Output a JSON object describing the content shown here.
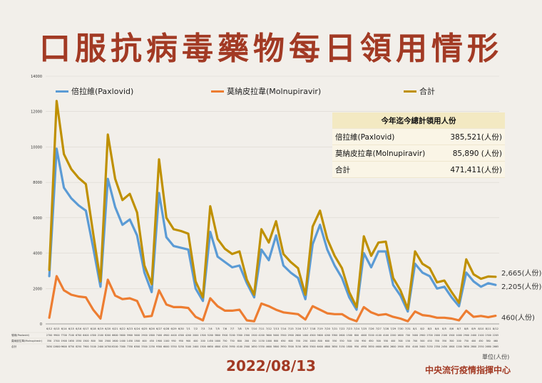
{
  "page": {
    "title": "口服抗病毒藥物每日領用情形",
    "date": "2022/08/13",
    "unit_note": "單位(人份)",
    "source": "中央流行疫情指揮中心"
  },
  "summary_table": {
    "header": "今年迄今總計領用人份",
    "rows": [
      {
        "label": "倍拉維(Paxlovid)",
        "value": "385,521(人份)"
      },
      {
        "label": "莫納皮拉韋(Molnupiravir)",
        "value": "85,890 (人份)"
      },
      {
        "label": "合計",
        "value": "471,411(人份)"
      }
    ]
  },
  "colors": {
    "paxlovid": "#5b9bd5",
    "molnupiravir": "#ed7d31",
    "total": "#bf9000",
    "title": "#a23a24"
  },
  "chart_data": {
    "type": "line",
    "ylim": [
      0,
      14000
    ],
    "yticks": [
      0,
      2000,
      4000,
      6000,
      8000,
      10000,
      12000,
      14000
    ],
    "x": [
      "6/12",
      "6/13",
      "6/14",
      "6/15",
      "6/16",
      "6/17",
      "6/18",
      "6/19",
      "6/20",
      "6/21",
      "6/22",
      "6/23",
      "6/24",
      "6/25",
      "6/26",
      "6/27",
      "6/28",
      "6/29",
      "6/30",
      "7/1",
      "7/2",
      "7/3",
      "7/4",
      "7/5",
      "7/6",
      "7/7",
      "7/8",
      "7/9",
      "7/10",
      "7/11",
      "7/12",
      "7/13",
      "7/14",
      "7/15",
      "7/16",
      "7/17",
      "7/18",
      "7/19",
      "7/20",
      "7/21",
      "7/22",
      "7/23",
      "7/24",
      "7/25",
      "7/26",
      "7/27",
      "7/28",
      "7/29",
      "7/30",
      "7/31",
      "8/1",
      "8/2",
      "8/3",
      "8/4",
      "8/5",
      "8/6",
      "8/7",
      "8/8",
      "8/9",
      "8/10",
      "8/11",
      "8/12"
    ],
    "series": [
      {
        "name": "倍拉維(Paxlovid)",
        "color": "#5b9bd5",
        "end_label": "2,205(人份)",
        "values": [
          2700,
          9900,
          7700,
          7100,
          6700,
          6400,
          4300,
          2100,
          8200,
          6600,
          5600,
          5900,
          5000,
          2900,
          1800,
          7400,
          4900,
          4400,
          4300,
          4200,
          2000,
          1300,
          5200,
          3800,
          3500,
          3200,
          3300,
          2300,
          1500,
          4200,
          3600,
          5000,
          3300,
          2900,
          2600,
          1400,
          4500,
          5600,
          4200,
          3300,
          2600,
          1500,
          800,
          4000,
          3200,
          4100,
          4100,
          2200,
          1600,
          700,
          3400,
          2900,
          2700,
          2000,
          2100,
          1500,
          1000,
          2900,
          2400,
          2100,
          2300,
          2205
        ]
      },
      {
        "name": "莫納皮拉韋(Molnupiravir)",
        "color": "#ed7d31",
        "end_label": "460(人份)",
        "values": [
          350,
          2700,
          1900,
          1650,
          1550,
          1500,
          800,
          300,
          2500,
          1600,
          1400,
          1450,
          1300,
          400,
          450,
          1900,
          1100,
          950,
          950,
          900,
          400,
          200,
          1450,
          1000,
          750,
          750,
          800,
          200,
          150,
          1150,
          1000,
          800,
          650,
          600,
          550,
          250,
          1000,
          800,
          600,
          550,
          550,
          300,
          150,
          950,
          650,
          500,
          550,
          400,
          300,
          150,
          700,
          500,
          450,
          350,
          350,
          300,
          200,
          750,
          400,
          450,
          380,
          460
        ]
      },
      {
        "name": "合計",
        "color": "#bf9000",
        "end_label": "2,665(人份)",
        "values": [
          3050,
          12600,
          9600,
          8750,
          8250,
          7900,
          5100,
          2400,
          10700,
          8200,
          7000,
          7350,
          6300,
          3300,
          2250,
          9300,
          6000,
          5350,
          5250,
          5100,
          2400,
          1500,
          6650,
          4800,
          4250,
          3950,
          4100,
          2500,
          1650,
          5350,
          4600,
          5800,
          3950,
          3500,
          3150,
          1650,
          5500,
          6400,
          4800,
          3850,
          3150,
          1800,
          950,
          4950,
          3850,
          4600,
          4650,
          2600,
          1900,
          850,
          4100,
          3400,
          3150,
          2350,
          2450,
          1800,
          1200,
          3650,
          2800,
          2550,
          2680,
          2665
        ]
      }
    ],
    "table_row_labels": [
      "領用(Paxlovid)",
      "莫納皮拉韋(Molnupiravir)",
      "合計"
    ]
  }
}
